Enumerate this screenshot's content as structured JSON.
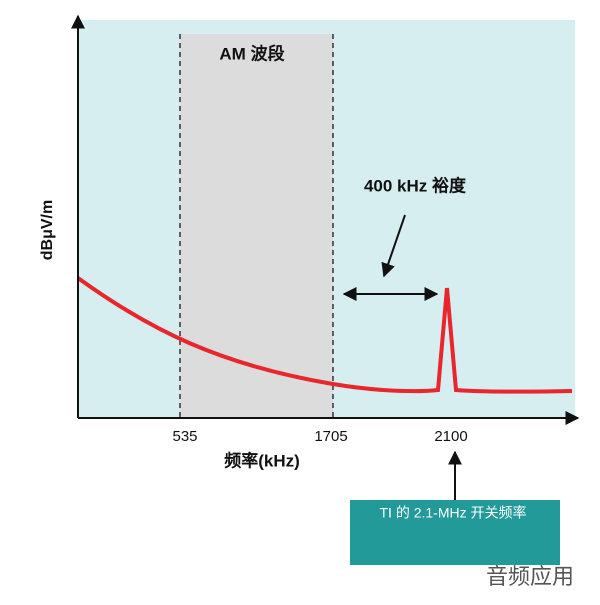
{
  "diagram": {
    "y_axis_label": "dBμV/m",
    "x_axis_label": "频率(kHz)",
    "x_tick_labels": [
      "535",
      "1705",
      "2100"
    ],
    "band_label": "AM 波段",
    "margin_label": "400 kHz 裕度",
    "callout": "TI 的 2.1-MHz 开关频率",
    "watermark": "音频应用"
  }
}
